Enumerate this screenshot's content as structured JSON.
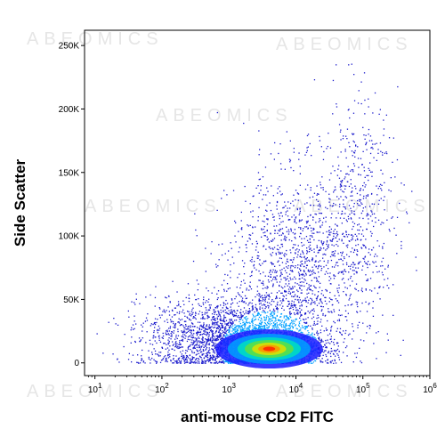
{
  "watermark_text": "ABEOMICS",
  "chart_data": {
    "type": "scatter",
    "subtype": "flow-cytometry-density-dot-plot",
    "xlabel": "anti-mouse CD2 FITC",
    "ylabel": "Side Scatter",
    "x_scale": "log",
    "xlim": [
      7,
      1000000
    ],
    "ylim": [
      -10000,
      262000
    ],
    "x_ticks": [
      {
        "value": 10,
        "base": "10",
        "exp": "1"
      },
      {
        "value": 100,
        "base": "10",
        "exp": "2"
      },
      {
        "value": 1000,
        "base": "10",
        "exp": "3"
      },
      {
        "value": 10000,
        "base": "10",
        "exp": "4"
      },
      {
        "value": 100000,
        "base": "10",
        "exp": "5"
      },
      {
        "value": 1000000,
        "base": "10",
        "exp": "6"
      }
    ],
    "y_ticks": [
      {
        "value": 0,
        "label": "0"
      },
      {
        "value": 50000,
        "label": "50K"
      },
      {
        "value": 100000,
        "label": "100K"
      },
      {
        "value": 150000,
        "label": "150K"
      },
      {
        "value": 200000,
        "label": "200K"
      },
      {
        "value": 250000,
        "label": "250K"
      }
    ],
    "grid": false,
    "legend": "none",
    "density_colors": [
      "#1a1aff",
      "#00a0ff",
      "#00e0c0",
      "#60e040",
      "#e0e000",
      "#ff9000",
      "#ff2000"
    ],
    "point_color": "#1a1acc",
    "populations": [
      {
        "center_log10_x": 3.6,
        "center_y": 12000,
        "spread_log10_x": 0.35,
        "spread_y": 6000,
        "count": 2200
      },
      {
        "center_log10_x": 3.2,
        "center_y": 20000,
        "spread_log10_x": 0.55,
        "spread_y": 15000,
        "count": 2200
      },
      {
        "center_log10_x": 4.0,
        "center_y": 70000,
        "spread_log10_x": 0.5,
        "spread_y": 40000,
        "count": 1400
      },
      {
        "center_log10_x": 4.9,
        "center_y": 120000,
        "spread_log10_x": 0.3,
        "spread_y": 45000,
        "count": 500
      },
      {
        "center_log10_x": 2.2,
        "center_y": 20000,
        "spread_log10_x": 0.4,
        "spread_y": 18000,
        "count": 350
      }
    ],
    "density_core": {
      "center_log10_x": 3.6,
      "center_y": 11000,
      "spread_log10_x": 0.28,
      "spread_y": 5000
    }
  }
}
